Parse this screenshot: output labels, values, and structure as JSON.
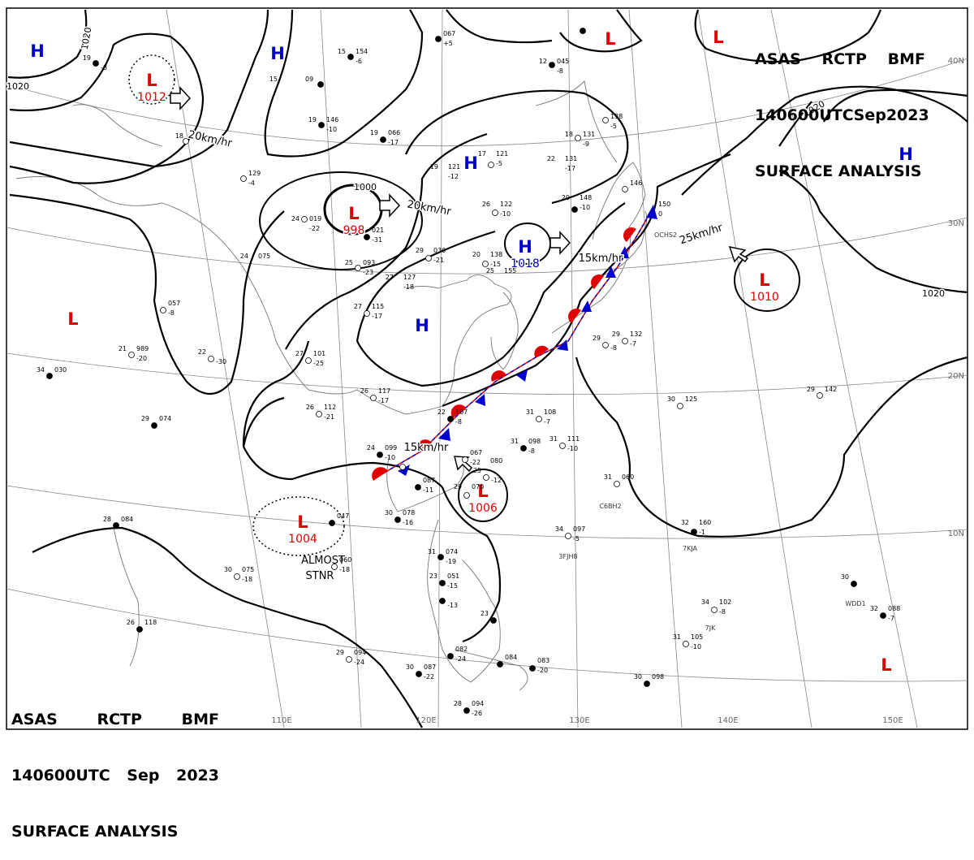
{
  "header": {
    "agency": "ASAS",
    "station": "RCTP",
    "office": "BMF",
    "datetime": "140600UTC",
    "month": "Sep",
    "year": "2023",
    "title": "SURFACE ANALYSIS"
  },
  "grid": {
    "lon_labels": [
      "110E",
      "120E",
      "130E",
      "140E",
      "150E"
    ],
    "lat_labels": [
      "40N",
      "30N",
      "20N",
      "10N"
    ]
  },
  "colors": {
    "low": "#e00000",
    "high": "#0000cc",
    "isobar": "#000000",
    "coast": "#777777",
    "grid": "#888888"
  },
  "isobar_labels": [
    "1020",
    "1020",
    "1020",
    "1020",
    "1000"
  ],
  "pressure_centers": [
    {
      "type": "H",
      "value": ""
    },
    {
      "type": "H",
      "value": ""
    },
    {
      "type": "L",
      "value": ""
    },
    {
      "type": "L",
      "value": "1012"
    },
    {
      "type": "L",
      "value": "998"
    },
    {
      "type": "H",
      "value": ""
    },
    {
      "type": "H",
      "value": "1018"
    },
    {
      "type": "L",
      "value": "1010"
    },
    {
      "type": "H",
      "value": ""
    },
    {
      "type": "L",
      "value": "1006"
    },
    {
      "type": "L",
      "value": "1004"
    },
    {
      "type": "L",
      "value": ""
    },
    {
      "type": "L",
      "value": ""
    },
    {
      "type": "L",
      "value": ""
    },
    {
      "type": "H",
      "value": ""
    }
  ],
  "motion_labels": [
    "20km/hr",
    "20km/hr",
    "15km/hr",
    "25km/hr",
    "15km/hr"
  ],
  "notes": [
    "ALMOST",
    "STNR"
  ],
  "ship_ids": [
    "OCHS2",
    "C6BH2",
    "3FJH8",
    "7KJA",
    "WDD1",
    "7JK"
  ],
  "stations": [
    {
      "t": "19",
      "p": "",
      "d": "-8"
    },
    {
      "t": "15",
      "p": "154",
      "d": "-6"
    },
    {
      "t": "",
      "p": "067",
      "d": "+5"
    },
    {
      "t": "15",
      "p": "",
      "d": ""
    },
    {
      "t": "",
      "p": "09",
      "d": ""
    },
    {
      "t": "19",
      "p": "146",
      "d": "-10"
    },
    {
      "t": "18",
      "p": "",
      "d": ""
    },
    {
      "t": "19",
      "p": "066",
      "d": "-17"
    },
    {
      "t": "17",
      "p": "121",
      "d": "-5"
    },
    {
      "t": "12",
      "p": "045",
      "d": "-8"
    },
    {
      "t": "18",
      "p": "131",
      "d": "-9"
    },
    {
      "t": "",
      "p": "138",
      "d": "-5"
    },
    {
      "t": "22",
      "p": "131",
      "d": "-17"
    },
    {
      "t": "19",
      "p": "121",
      "d": "-12"
    },
    {
      "t": "",
      "p": "129",
      "d": "-4"
    },
    {
      "t": "",
      "p": "146",
      "d": ""
    },
    {
      "t": "20",
      "p": "148",
      "d": "-10"
    },
    {
      "t": "26",
      "p": "122",
      "d": "-10"
    },
    {
      "t": "",
      "p": "150",
      "d": "0"
    },
    {
      "t": "24",
      "p": "019",
      "d": "-22"
    },
    {
      "t": "",
      "p": "021",
      "d": "-31"
    },
    {
      "t": "25",
      "p": "093",
      "d": "-23"
    },
    {
      "t": "29",
      "p": "030",
      "d": "-21"
    },
    {
      "t": "20",
      "p": "138",
      "d": "-15"
    },
    {
      "t": "25",
      "p": "155",
      "d": ""
    },
    {
      "t": "24",
      "p": "075",
      "d": ""
    },
    {
      "t": "27",
      "p": "115",
      "d": "-17"
    },
    {
      "t": "27",
      "p": "127",
      "d": "-18"
    },
    {
      "t": "",
      "p": "057",
      "d": "-8"
    },
    {
      "t": "22",
      "p": "",
      "d": "-30"
    },
    {
      "t": "21",
      "p": "989",
      "d": "-20"
    },
    {
      "t": "34",
      "p": "030",
      "d": ""
    },
    {
      "t": "27",
      "p": "101",
      "d": "-25"
    },
    {
      "t": "26",
      "p": "117",
      "d": "-17"
    },
    {
      "t": "26",
      "p": "112",
      "d": "-21"
    },
    {
      "t": "29",
      "p": "074",
      "d": ""
    },
    {
      "t": "22",
      "p": "107",
      "d": "-8"
    },
    {
      "t": "31",
      "p": "108",
      "d": "-7"
    },
    {
      "t": "30",
      "p": "125",
      "d": ""
    },
    {
      "t": "29",
      "p": "142",
      "d": ""
    },
    {
      "t": "29",
      "p": "",
      "d": "-8"
    },
    {
      "t": "29",
      "p": "132",
      "d": "-7"
    },
    {
      "t": "31",
      "p": "098",
      "d": "-8"
    },
    {
      "t": "31",
      "p": "111",
      "d": "-10"
    },
    {
      "t": "24",
      "p": "099",
      "d": "-10"
    },
    {
      "t": "",
      "p": "067",
      "d": "-22"
    },
    {
      "t": "25",
      "p": "",
      "d": "-12"
    },
    {
      "t": "",
      "p": "080",
      "d": ""
    },
    {
      "t": "",
      "p": "087",
      "d": "-11"
    },
    {
      "t": "29",
      "p": "070",
      "d": ""
    },
    {
      "t": "31",
      "p": "060",
      "d": ""
    },
    {
      "t": "",
      "p": "047",
      "d": ""
    },
    {
      "t": "28",
      "p": "084",
      "d": ""
    },
    {
      "t": "30",
      "p": "078",
      "d": "-16"
    },
    {
      "t": "34",
      "p": "097",
      "d": "-5"
    },
    {
      "t": "32",
      "p": "160",
      "d": "-1"
    },
    {
      "t": "30",
      "p": "075",
      "d": "-18"
    },
    {
      "t": "",
      "p": "060",
      "d": "-18"
    },
    {
      "t": "31",
      "p": "074",
      "d": "-19"
    },
    {
      "t": "23",
      "p": "051",
      "d": "-15"
    },
    {
      "t": "",
      "p": "",
      "d": "-13"
    },
    {
      "t": "34",
      "p": "102",
      "d": "-8"
    },
    {
      "t": "30",
      "p": "",
      "d": ""
    },
    {
      "t": "32",
      "p": "088",
      "d": "-7"
    },
    {
      "t": "26",
      "p": "118",
      "d": ""
    },
    {
      "t": "31",
      "p": "105",
      "d": "-10"
    },
    {
      "t": "29",
      "p": "094",
      "d": "-24"
    },
    {
      "t": "30",
      "p": "087",
      "d": "-22"
    },
    {
      "t": "",
      "p": "082",
      "d": "-24"
    },
    {
      "t": "",
      "p": "084",
      "d": ""
    },
    {
      "t": "",
      "p": "083",
      "d": "-20"
    },
    {
      "t": "30",
      "p": "098",
      "d": ""
    },
    {
      "t": "28",
      "p": "094",
      "d": "-26"
    },
    {
      "t": "23",
      "p": "",
      "d": ""
    }
  ]
}
